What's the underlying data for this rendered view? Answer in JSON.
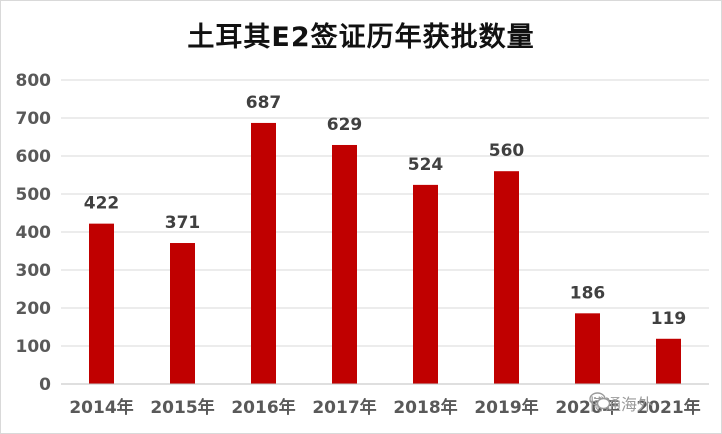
{
  "chart_data": {
    "type": "bar",
    "title": "土耳其E2签证历年获批数量",
    "xlabel": "",
    "ylabel": "",
    "categories": [
      "2014年",
      "2015年",
      "2016年",
      "2017年",
      "2018年",
      "2019年",
      "2020年",
      "2021年"
    ],
    "values": [
      422,
      371,
      687,
      629,
      524,
      560,
      186,
      119
    ],
    "ylim": [
      0,
      800
    ],
    "yticks": [
      0,
      100,
      200,
      300,
      400,
      500,
      600,
      700,
      800
    ],
    "grid": true,
    "legend": "none",
    "bar_color": "#C00000",
    "data_labels": true
  },
  "watermark": {
    "text": "博通海外",
    "icon": "wechat-icon"
  }
}
